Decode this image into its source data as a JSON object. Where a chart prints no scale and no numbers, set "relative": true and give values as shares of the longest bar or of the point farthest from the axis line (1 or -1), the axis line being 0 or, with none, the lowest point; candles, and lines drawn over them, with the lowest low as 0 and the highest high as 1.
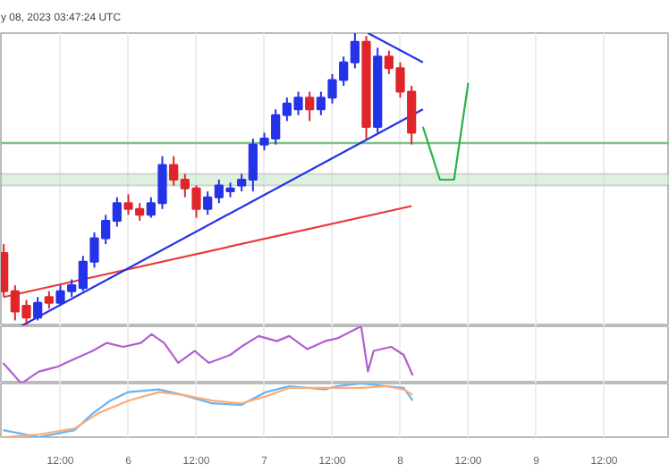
{
  "chart_data": [
    {
      "type": "candlestick",
      "title": "y 08, 2023 03:47:24 UTC",
      "relative": true,
      "grid": "x",
      "tick_labels": false,
      "xlim": [
        "2023-05-05T01:30",
        "2023-05-09T23:36"
      ],
      "xticks": [
        {
          "value": "2023-05-05T12:00",
          "label": null
        },
        {
          "value": "2023-05-06",
          "label": null
        },
        {
          "value": "2023-05-06T12:00",
          "label": null
        },
        {
          "value": "2023-05-07",
          "label": null
        },
        {
          "value": "2023-05-07T12:00",
          "label": null
        },
        {
          "value": "2023-05-08",
          "label": null
        },
        {
          "value": "2023-05-08T12:00",
          "label": null
        },
        {
          "value": "2023-05-09",
          "label": null
        },
        {
          "value": "2023-05-09T12:00",
          "label": null
        }
      ],
      "x": [
        "2023-05-05T02:00",
        "2023-05-05T04:00",
        "2023-05-05T06:00",
        "2023-05-05T08:00",
        "2023-05-05T10:00",
        "2023-05-05T12:00",
        "2023-05-05T14:00",
        "2023-05-05T16:00",
        "2023-05-05T18:00",
        "2023-05-05T20:00",
        "2023-05-05T22:00",
        "2023-05-06T00:00",
        "2023-05-06T02:00",
        "2023-05-06T04:00",
        "2023-05-06T06:00",
        "2023-05-06T08:00",
        "2023-05-06T10:00",
        "2023-05-06T12:00",
        "2023-05-06T14:00",
        "2023-05-06T16:00",
        "2023-05-06T18:00",
        "2023-05-06T20:00",
        "2023-05-06T22:00",
        "2023-05-07T00:00",
        "2023-05-07T02:00",
        "2023-05-07T04:00",
        "2023-05-07T06:00",
        "2023-05-07T08:00",
        "2023-05-07T10:00",
        "2023-05-07T12:00",
        "2023-05-07T14:00",
        "2023-05-07T16:00",
        "2023-05-07T18:00",
        "2023-05-07T20:00",
        "2023-05-07T22:00",
        "2023-05-08T00:00",
        "2023-05-08T02:00"
      ],
      "ohlc": [
        [
          0.25,
          0.28,
          0.1,
          0.12
        ],
        [
          0.12,
          0.14,
          0.02,
          0.05
        ],
        [
          0.07,
          0.09,
          0.0,
          0.03
        ],
        [
          0.03,
          0.1,
          0.02,
          0.08
        ],
        [
          0.1,
          0.12,
          0.06,
          0.08
        ],
        [
          0.08,
          0.14,
          0.07,
          0.12
        ],
        [
          0.12,
          0.16,
          0.1,
          0.14
        ],
        [
          0.13,
          0.24,
          0.12,
          0.22
        ],
        [
          0.22,
          0.32,
          0.2,
          0.3
        ],
        [
          0.3,
          0.38,
          0.28,
          0.36
        ],
        [
          0.36,
          0.44,
          0.34,
          0.42
        ],
        [
          0.42,
          0.45,
          0.38,
          0.4
        ],
        [
          0.4,
          0.42,
          0.36,
          0.38
        ],
        [
          0.38,
          0.44,
          0.37,
          0.42
        ],
        [
          0.42,
          0.58,
          0.4,
          0.55
        ],
        [
          0.55,
          0.58,
          0.48,
          0.5
        ],
        [
          0.5,
          0.52,
          0.44,
          0.47
        ],
        [
          0.47,
          0.48,
          0.37,
          0.4
        ],
        [
          0.4,
          0.46,
          0.38,
          0.44
        ],
        [
          0.44,
          0.5,
          0.42,
          0.48
        ],
        [
          0.46,
          0.49,
          0.44,
          0.47
        ],
        [
          0.48,
          0.52,
          0.46,
          0.5
        ],
        [
          0.5,
          0.64,
          0.46,
          0.62
        ],
        [
          0.62,
          0.66,
          0.6,
          0.64
        ],
        [
          0.64,
          0.74,
          0.62,
          0.72
        ],
        [
          0.72,
          0.78,
          0.7,
          0.76
        ],
        [
          0.74,
          0.8,
          0.72,
          0.78
        ],
        [
          0.78,
          0.8,
          0.7,
          0.74
        ],
        [
          0.74,
          0.8,
          0.72,
          0.78
        ],
        [
          0.78,
          0.86,
          0.76,
          0.84
        ],
        [
          0.84,
          0.92,
          0.82,
          0.9
        ],
        [
          0.9,
          1.0,
          0.88,
          0.97
        ],
        [
          0.97,
          0.99,
          0.64,
          0.68
        ],
        [
          0.68,
          0.95,
          0.66,
          0.92
        ],
        [
          0.92,
          0.94,
          0.86,
          0.88
        ],
        [
          0.88,
          0.9,
          0.78,
          0.8
        ],
        [
          0.8,
          0.82,
          0.62,
          0.66
        ]
      ],
      "colors": [
        "#e0262a",
        "#e0262a",
        "#e0262a",
        "#2432e8",
        "#e0262a",
        "#2432e8",
        "#2432e8",
        "#2432e8",
        "#2432e8",
        "#2432e8",
        "#2432e8",
        "#e0262a",
        "#e0262a",
        "#2432e8",
        "#2432e8",
        "#e0262a",
        "#e0262a",
        "#e0262a",
        "#2432e8",
        "#2432e8",
        "#2432e8",
        "#2432e8",
        "#2432e8",
        "#2432e8",
        "#2432e8",
        "#2432e8",
        "#2432e8",
        "#e0262a",
        "#2432e8",
        "#2432e8",
        "#2432e8",
        "#2432e8",
        "#e0262a",
        "#2432e8",
        "#e0262a",
        "#e0262a",
        "#e0262a"
      ],
      "series": [
        {
          "type": "line",
          "color": "#e8393b",
          "x": [
            "2023-05-05T02:00",
            "2023-05-08T02:00"
          ],
          "values": [
            0.1,
            0.41
          ]
        },
        {
          "type": "line",
          "color": "#2432e8",
          "x": [
            "2023-05-05T05:00",
            "2023-05-08T04:00"
          ],
          "values": [
            0.0,
            0.74
          ]
        },
        {
          "type": "line",
          "color": "#2432e8",
          "x": [
            "2023-05-07T18:18",
            "2023-05-08T04:00"
          ],
          "values": [
            1.0,
            0.9
          ]
        },
        {
          "type": "line",
          "color": "#27b34a",
          "x": [
            "2023-05-08T04:00",
            "2023-05-08T07:00",
            "2023-05-08T09:30",
            "2023-05-08T12:00"
          ],
          "values": [
            0.68,
            0.5,
            0.5,
            0.83
          ]
        }
      ],
      "ref_lines": [
        {
          "axis": "y",
          "value": 0.625,
          "color": "#7cc47f"
        }
      ],
      "bands": [
        {
          "axis": "y",
          "from": 0.48,
          "to": 0.52,
          "color": "#c8e6c9"
        }
      ]
    },
    {
      "type": "line",
      "relative": true,
      "grid": "x",
      "tick_labels": false,
      "xlim": [
        "2023-05-05T01:30",
        "2023-05-09T23:36"
      ],
      "xticks": [
        {
          "value": "2023-05-05T12:00",
          "label": null
        },
        {
          "value": "2023-05-06",
          "label": null
        },
        {
          "value": "2023-05-06T12:00",
          "label": null
        },
        {
          "value": "2023-05-07",
          "label": null
        },
        {
          "value": "2023-05-07T12:00",
          "label": null
        },
        {
          "value": "2023-05-08",
          "label": null
        },
        {
          "value": "2023-05-08T12:00",
          "label": null
        },
        {
          "value": "2023-05-09",
          "label": null
        },
        {
          "value": "2023-05-09T12:00",
          "label": null
        }
      ],
      "series": [
        {
          "color": "#b05fd0",
          "x": [
            "2023-05-05T01:54",
            "2023-05-05T05:06",
            "2023-05-05T08:12",
            "2023-05-05T11:24",
            "2023-05-05T14:30",
            "2023-05-05T17:42",
            "2023-05-05T20:12",
            "2023-05-05T23:06",
            "2023-05-06T02:12",
            "2023-05-06T04:06",
            "2023-05-06T06:18",
            "2023-05-06T08:48",
            "2023-05-06T11:42",
            "2023-05-06T14:12",
            "2023-05-06T18:00",
            "2023-05-06T19:54",
            "2023-05-06T23:00",
            "2023-05-07T02:12",
            "2023-05-07T04:24",
            "2023-05-07T07:36",
            "2023-05-07T10:42",
            "2023-05-07T12:54",
            "2023-05-07T17:06",
            "2023-05-07T18:18",
            "2023-05-07T19:18",
            "2023-05-07T22:24",
            "2023-05-08T00:36",
            "2023-05-08T02:12"
          ],
          "values": [
            0.36,
            0.0,
            0.21,
            0.29,
            0.43,
            0.57,
            0.71,
            0.64,
            0.71,
            0.86,
            0.71,
            0.36,
            0.57,
            0.36,
            0.5,
            0.64,
            0.83,
            0.74,
            0.83,
            0.6,
            0.74,
            0.79,
            1.0,
            0.21,
            0.57,
            0.64,
            0.5,
            0.14
          ]
        }
      ]
    },
    {
      "type": "line",
      "relative": true,
      "grid": "x",
      "tick_labels": "x",
      "xlim": [
        "2023-05-05T01:30",
        "2023-05-09T23:36"
      ],
      "xticks": [
        {
          "value": "2023-05-05T12:00",
          "label": "12:00"
        },
        {
          "value": "2023-05-06",
          "label": "6"
        },
        {
          "value": "2023-05-06T12:00",
          "label": "12:00"
        },
        {
          "value": "2023-05-07",
          "label": "7"
        },
        {
          "value": "2023-05-07T12:00",
          "label": "12:00"
        },
        {
          "value": "2023-05-08",
          "label": "8"
        },
        {
          "value": "2023-05-08T12:00",
          "label": "12:00"
        },
        {
          "value": "2023-05-09",
          "label": "9"
        },
        {
          "value": "2023-05-09T12:00",
          "label": "12:00"
        }
      ],
      "series": [
        {
          "color": "#64b5f6",
          "x": [
            "2023-05-05T01:54",
            "2023-05-05T08:12",
            "2023-05-05T14:30",
            "2023-05-05T17:42",
            "2023-05-05T20:48",
            "2023-05-06T00:00",
            "2023-05-06T05:24",
            "2023-05-06T09:30",
            "2023-05-06T14:48",
            "2023-05-06T19:54",
            "2023-05-07T00:18",
            "2023-05-07T04:24",
            "2023-05-07T10:42",
            "2023-05-07T12:54",
            "2023-05-07T17:06",
            "2023-05-07T21:30",
            "2023-05-08T00:36",
            "2023-05-08T02:12"
          ],
          "values": [
            0.13,
            0.0,
            0.13,
            0.44,
            0.68,
            0.84,
            0.89,
            0.79,
            0.63,
            0.6,
            0.84,
            0.95,
            0.89,
            0.95,
            1.0,
            0.95,
            0.92,
            0.68
          ]
        },
        {
          "color": "#ffab76",
          "x": [
            "2023-05-05T01:54",
            "2023-05-05T08:12",
            "2023-05-05T14:30",
            "2023-05-05T18:36",
            "2023-05-06T00:00",
            "2023-05-06T05:24",
            "2023-05-06T09:30",
            "2023-05-06T14:48",
            "2023-05-06T19:54",
            "2023-05-07T00:18",
            "2023-05-07T04:24",
            "2023-05-07T10:42",
            "2023-05-07T17:06",
            "2023-05-07T21:30",
            "2023-05-08T00:36",
            "2023-05-08T02:12"
          ],
          "values": [
            0.0,
            0.05,
            0.16,
            0.44,
            0.68,
            0.84,
            0.79,
            0.68,
            0.63,
            0.76,
            0.92,
            0.92,
            0.92,
            0.95,
            0.89,
            0.79
          ]
        }
      ]
    }
  ]
}
